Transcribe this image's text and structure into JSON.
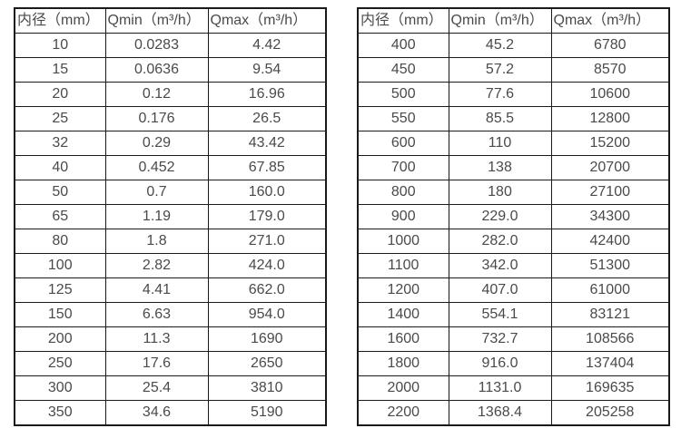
{
  "page": {
    "background": "#ffffff",
    "text_color": "#4a4a4a",
    "border_color": "#1a1a1a"
  },
  "tables": [
    {
      "name": "small-diameter-flow-table",
      "headers": [
        "内径（mm）",
        "Qmin（m³/h）",
        "Qmax（m³/h）"
      ],
      "rows": [
        [
          "10",
          "0.0283",
          "4.42"
        ],
        [
          "15",
          "0.0636",
          "9.54"
        ],
        [
          "20",
          "0.12",
          "16.96"
        ],
        [
          "25",
          "0.176",
          "26.5"
        ],
        [
          "32",
          "0.29",
          "43.42"
        ],
        [
          "40",
          "0.452",
          "67.85"
        ],
        [
          "50",
          "0.7",
          "160.0"
        ],
        [
          "65",
          "1.19",
          "179.0"
        ],
        [
          "80",
          "1.8",
          "271.0"
        ],
        [
          "100",
          "2.82",
          "424.0"
        ],
        [
          "125",
          "4.41",
          "662.0"
        ],
        [
          "150",
          "6.63",
          "954.0"
        ],
        [
          "200",
          "11.3",
          "1690"
        ],
        [
          "250",
          "17.6",
          "2650"
        ],
        [
          "300",
          "25.4",
          "3810"
        ],
        [
          "350",
          "34.6",
          "5190"
        ]
      ]
    },
    {
      "name": "large-diameter-flow-table",
      "headers": [
        "内径（mm）",
        "Qmin（m³/h）",
        "Qmax（m³/h）"
      ],
      "rows": [
        [
          "400",
          "45.2",
          "6780"
        ],
        [
          "450",
          "57.2",
          "8570"
        ],
        [
          "500",
          "77.6",
          "10600"
        ],
        [
          "550",
          "85.5",
          "12800"
        ],
        [
          "600",
          "110",
          "15200"
        ],
        [
          "700",
          "138",
          "20700"
        ],
        [
          "800",
          "180",
          "27100"
        ],
        [
          "900",
          "229.0",
          "34300"
        ],
        [
          "1000",
          "282.0",
          "42400"
        ],
        [
          "1100",
          "342.0",
          "51300"
        ],
        [
          "1200",
          "407.0",
          "61000"
        ],
        [
          "1400",
          "554.1",
          "83121"
        ],
        [
          "1600",
          "732.7",
          "108566"
        ],
        [
          "1800",
          "916.0",
          "137404"
        ],
        [
          "2000",
          "1131.0",
          "169635"
        ],
        [
          "2200",
          "1368.4",
          "205258"
        ]
      ]
    }
  ]
}
